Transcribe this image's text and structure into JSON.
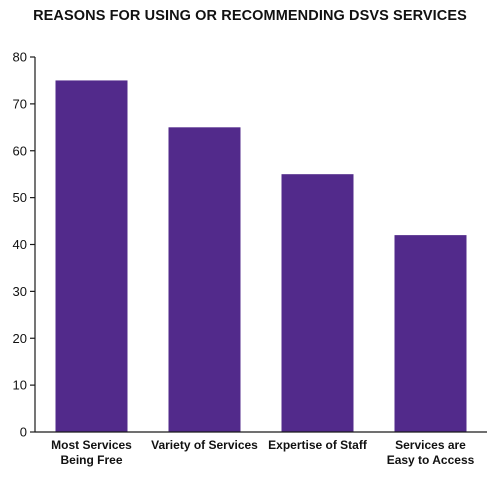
{
  "chart_data": {
    "type": "bar",
    "title": "REASONS FOR USING OR RECOMMENDING DSVS SERVICES",
    "categories": [
      [
        "Most Services",
        "Being Free"
      ],
      [
        "Variety of Services"
      ],
      [
        "Expertise of Staff"
      ],
      [
        "Services are",
        "Easy to Access"
      ]
    ],
    "values": [
      75,
      65,
      55,
      42
    ],
    "ylim": [
      0,
      80
    ],
    "yticks": [
      0,
      10,
      20,
      30,
      40,
      50,
      60,
      70,
      80
    ],
    "xlabel": "",
    "ylabel": "",
    "grid": false,
    "legend": "none",
    "bar_color": "#522a8b",
    "axis_color": "#1a1a1a"
  }
}
